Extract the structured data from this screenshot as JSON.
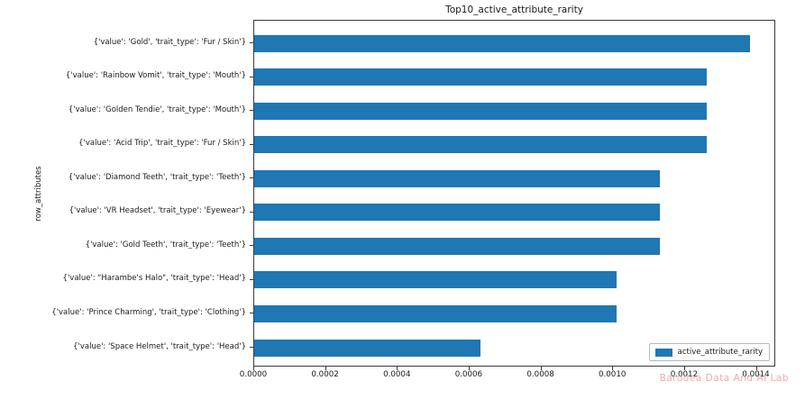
{
  "figure": {
    "watermark": "Barodea Data And AI Lab",
    "colors": {
      "bar": "#1f77b4",
      "text": "#1a1a1a",
      "spine": "#3a3a3a",
      "watermark": "#e29292"
    }
  },
  "chart_data": {
    "type": "bar",
    "orientation": "horizontal",
    "title": "Top10_active_attribute_rarity",
    "xlabel": "",
    "ylabel": "row_attributes",
    "categories": [
      "{'value': 'Gold', 'trait_type': 'Fur / Skin'}",
      "{'value': 'Rainbow Vomit', 'trait_type': 'Mouth'}",
      "{'value': 'Golden Tendie', 'trait_type': 'Mouth'}",
      "{'value': 'Acid Trip', 'trait_type': 'Fur / Skin'}",
      "{'value': 'Diamond Teeth', 'trait_type': 'Teeth'}",
      "{'value': 'VR Headset', 'trait_type': 'Eyewear'}",
      "{'value': 'Gold Teeth', 'trait_type': 'Teeth'}",
      "{'value': \"Harambe's Halo\", 'trait_type': 'Head'}",
      "{'value': 'Prince Charming', 'trait_type': 'Clothing'}",
      "{'value': 'Space Helmet', 'trait_type': 'Head'}"
    ],
    "series": [
      {
        "name": "active_attribute_rarity",
        "values": [
          0.00138,
          0.00126,
          0.00126,
          0.00126,
          0.00113,
          0.00113,
          0.00113,
          0.00101,
          0.00101,
          0.00063
        ]
      }
    ],
    "xlim": [
      0,
      0.001454
    ],
    "xticks": [
      0.0,
      0.0002,
      0.0004,
      0.0006,
      0.0008,
      0.001,
      0.0012,
      0.0014
    ],
    "xtick_decimals": 4,
    "grid": false,
    "legend": {
      "position": "lower right",
      "entries": [
        "active_attribute_rarity"
      ]
    },
    "bar_color": "#1f77b4"
  }
}
